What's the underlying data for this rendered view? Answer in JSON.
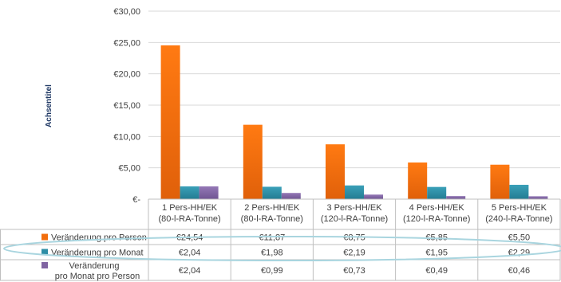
{
  "chart_data": {
    "type": "bar",
    "ylabel": "Achsentitel",
    "ylim": [
      0,
      30
    ],
    "y_ticks": [
      "€-",
      "€5,00",
      "€10,00",
      "€15,00",
      "€20,00",
      "€25,00",
      "€30,00"
    ],
    "categories": [
      [
        "1 Pers-HH/EK",
        "(80-l-RA-Tonne)"
      ],
      [
        "2 Pers-HH/EK",
        "(80-l-RA-Tonne)"
      ],
      [
        "3 Pers-HH/EK",
        "(120-l-RA-Tonne)"
      ],
      [
        "4 Pers-HH/EK",
        "(120-l-RA-Tonne)"
      ],
      [
        "5 Pers-HH/EK",
        "(240-l-RA-Tonne)"
      ]
    ],
    "series": [
      {
        "name": "Veränderung pro Person",
        "color": "#f26d0c",
        "values": [
          24.54,
          11.87,
          8.75,
          5.85,
          5.5
        ],
        "labels": [
          "€24,54",
          "€11,87",
          "€8,75",
          "€5,85",
          "€5,50"
        ]
      },
      {
        "name": "Veränderung pro Monat",
        "color": "#2e8ea6",
        "values": [
          2.04,
          1.98,
          2.19,
          1.95,
          2.29
        ],
        "labels": [
          "€2,04",
          "€1,98",
          "€2,19",
          "€1,95",
          "€2,29"
        ]
      },
      {
        "name": "Veränderung pro Monat pro Person",
        "name_lines": [
          "Veränderung",
          "pro Monat pro Person"
        ],
        "color": "#8064a2",
        "values": [
          2.04,
          0.99,
          0.73,
          0.49,
          0.46
        ],
        "labels": [
          "€2,04",
          "€0,99",
          "€0,73",
          "€0,49",
          "€0,46"
        ]
      }
    ],
    "grid": true,
    "data_table": true
  }
}
